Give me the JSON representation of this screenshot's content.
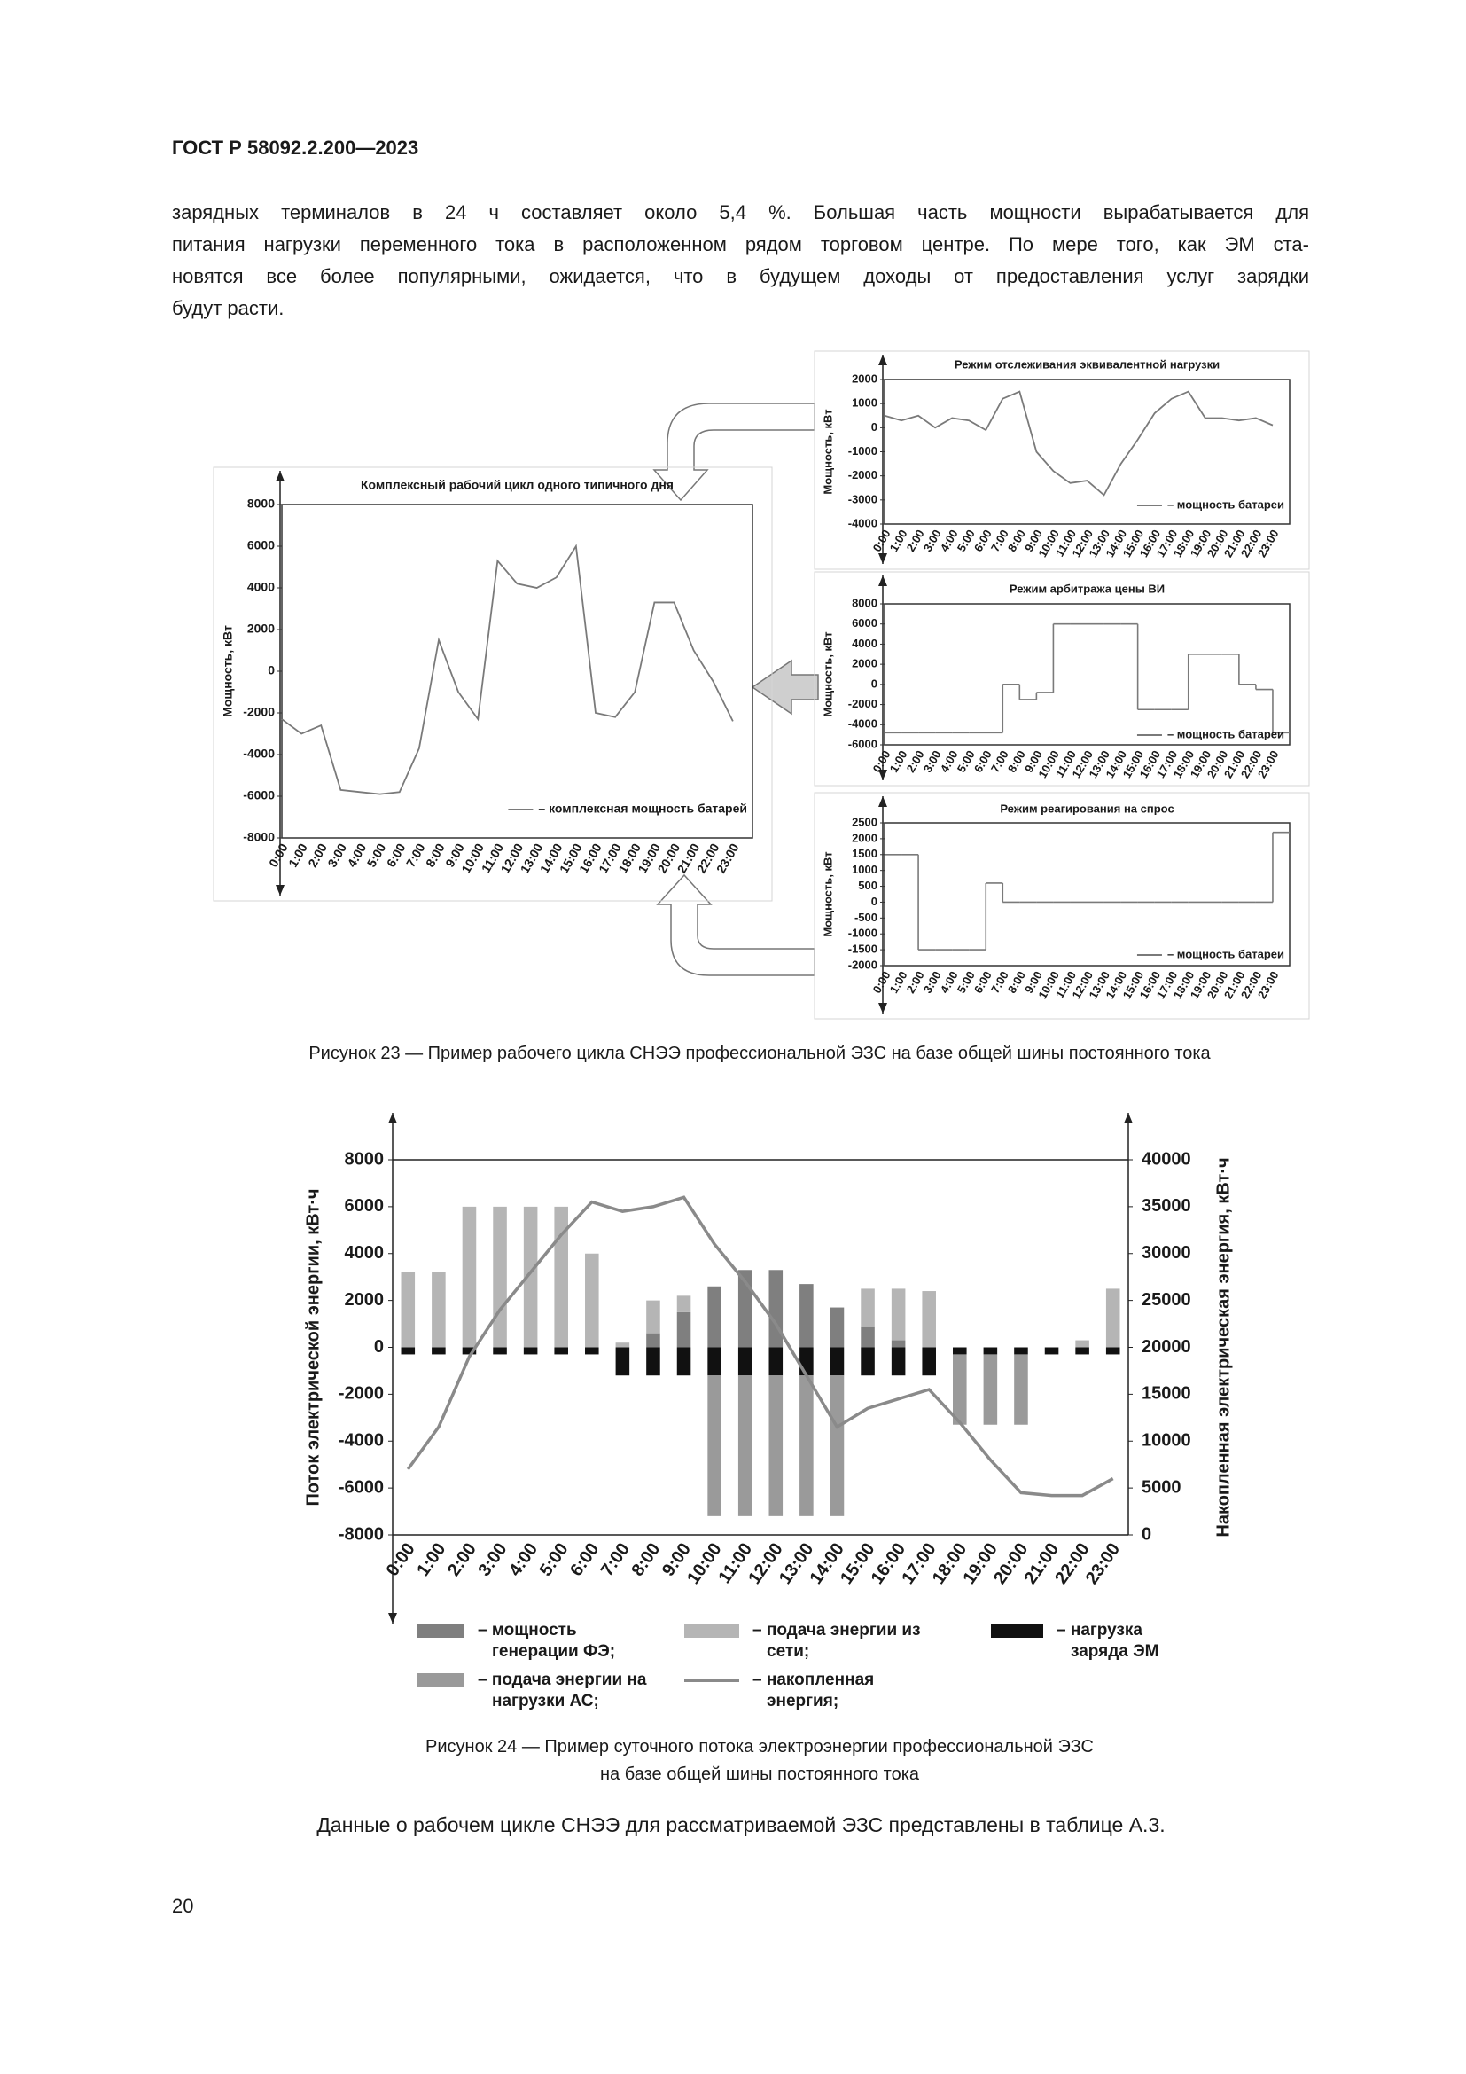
{
  "header": "ГОСТ Р 58092.2.200—2023",
  "paragraph": [
    "зарядных терминалов в 24 ч составляет около 5,4 %. Большая часть мощности вырабатывается для",
    "питания нагрузки переменного тока в расположенном рядом торговом центре. По мере того, как ЭМ ста-",
    "новятся все более популярными, ожидается, что в будущем доходы от предоставления услуг зарядки",
    "будут расти."
  ],
  "chart_data": [
    {
      "type": "line",
      "title": "Комплексный рабочий цикл одного типичного дня",
      "y_label": "Мощность, кВт",
      "categories": [
        "0:00",
        "1:00",
        "2:00",
        "3:00",
        "4:00",
        "5:00",
        "6:00",
        "7:00",
        "8:00",
        "9:00",
        "10:00",
        "11:00",
        "12:00",
        "13:00",
        "14:00",
        "15:00",
        "16:00",
        "17:00",
        "18:00",
        "19:00",
        "20:00",
        "21:00",
        "22:00",
        "23:00"
      ],
      "series": [
        {
          "name": "– комплексная мощность батарей",
          "color": "#7a7a7a",
          "values": [
            -2300,
            -3000,
            -2600,
            -5700,
            -5800,
            -5900,
            -5800,
            -3700,
            1500,
            -1000,
            -2300,
            5300,
            4200,
            4000,
            4500,
            6000,
            -2000,
            -2200,
            -1000,
            3300,
            3300,
            1000,
            -500,
            -2400
          ]
        }
      ],
      "ylim": [
        -8000,
        8000
      ],
      "yticks": [
        -8000,
        -6000,
        -4000,
        -2000,
        0,
        2000,
        4000,
        6000,
        8000
      ],
      "step": false
    },
    {
      "type": "line",
      "title": "Режим отслеживания эквивалентной нагрузки",
      "y_label": "Мощность, кВт",
      "categories": [
        "0:00",
        "1:00",
        "2:00",
        "3:00",
        "4:00",
        "5:00",
        "6:00",
        "7:00",
        "8:00",
        "9:00",
        "10:00",
        "11:00",
        "12:00",
        "13:00",
        "14:00",
        "15:00",
        "16:00",
        "17:00",
        "18:00",
        "19:00",
        "20:00",
        "21:00",
        "22:00",
        "23:00"
      ],
      "series": [
        {
          "name": "– мощность батареи",
          "color": "#7a7a7a",
          "values": [
            500,
            300,
            500,
            0,
            400,
            300,
            -100,
            1200,
            1500,
            -1000,
            -1800,
            -2300,
            -2200,
            -2800,
            -1500,
            -500,
            600,
            1200,
            1500,
            400,
            400,
            300,
            400,
            100
          ]
        }
      ],
      "ylim": [
        -4000,
        2000
      ],
      "yticks": [
        -4000,
        -3000,
        -2000,
        -1000,
        0,
        1000,
        2000
      ],
      "step": false
    },
    {
      "type": "line",
      "title": "Режим арбитража цены ВИ",
      "y_label": "Мощность, кВт",
      "categories": [
        "0:00",
        "1:00",
        "2:00",
        "3:00",
        "4:00",
        "5:00",
        "6:00",
        "7:00",
        "8:00",
        "9:00",
        "10:00",
        "11:00",
        "12:00",
        "13:00",
        "14:00",
        "15:00",
        "16:00",
        "17:00",
        "18:00",
        "19:00",
        "20:00",
        "21:00",
        "22:00",
        "23:00"
      ],
      "series": [
        {
          "name": "– мощность батареи",
          "color": "#7a7a7a",
          "values": [
            -4800,
            -4800,
            -4800,
            -4800,
            -4800,
            -4800,
            -4800,
            0,
            -1500,
            -800,
            6000,
            6000,
            6000,
            6000,
            6000,
            -2500,
            -2500,
            -2500,
            3000,
            3000,
            3000,
            0,
            -500,
            -4800
          ]
        }
      ],
      "ylim": [
        -6000,
        8000
      ],
      "yticks": [
        -6000,
        -4000,
        -2000,
        0,
        2000,
        4000,
        6000,
        8000
      ],
      "step": true
    },
    {
      "type": "line",
      "title": "Режим реагирования на спрос",
      "y_label": "Мощность, кВт",
      "categories": [
        "0:00",
        "1:00",
        "2:00",
        "3:00",
        "4:00",
        "5:00",
        "6:00",
        "7:00",
        "8:00",
        "9:00",
        "10:00",
        "11:00",
        "12:00",
        "13:00",
        "14:00",
        "15:00",
        "16:00",
        "17:00",
        "18:00",
        "19:00",
        "20:00",
        "21:00",
        "22:00",
        "23:00"
      ],
      "series": [
        {
          "name": "– мощность батареи",
          "color": "#7a7a7a",
          "values": [
            1500,
            1500,
            -1500,
            -1500,
            -1500,
            -1500,
            600,
            0,
            0,
            0,
            0,
            0,
            0,
            0,
            0,
            0,
            0,
            0,
            0,
            0,
            0,
            0,
            0,
            2200
          ]
        }
      ],
      "ylim": [
        -2000,
        2500
      ],
      "yticks": [
        -2000,
        -1500,
        -1000,
        -500,
        0,
        500,
        1000,
        1500,
        2000,
        2500
      ],
      "step": true
    },
    {
      "type": "combo",
      "y_label": "Поток электрической энергии, кВт·ч",
      "y2_label": "Накопленная электрическая энергия, кВт·ч",
      "categories": [
        "0:00",
        "1:00",
        "2:00",
        "3:00",
        "4:00",
        "5:00",
        "6:00",
        "7:00",
        "8:00",
        "9:00",
        "10:00",
        "11:00",
        "12:00",
        "13:00",
        "14:00",
        "15:00",
        "16:00",
        "17:00",
        "18:00",
        "19:00",
        "20:00",
        "21:00",
        "22:00",
        "23:00"
      ],
      "series": [
        {
          "name": "– мощность генерации ФЭ;",
          "type": "bar",
          "color": "#7f7f7f",
          "values": [
            0,
            0,
            0,
            0,
            0,
            0,
            0,
            0,
            600,
            1500,
            2600,
            3300,
            3300,
            2700,
            1700,
            900,
            300,
            0,
            0,
            0,
            0,
            0,
            0,
            0
          ]
        },
        {
          "name": "– подача энергии из сети;",
          "type": "bar",
          "color": "#b5b5b5",
          "values": [
            3200,
            3200,
            6000,
            6000,
            6000,
            6000,
            4000,
            200,
            1400,
            700,
            0,
            0,
            0,
            0,
            0,
            1600,
            2200,
            2400,
            0,
            0,
            0,
            0,
            300,
            2500
          ]
        },
        {
          "name": "– нагрузка заряда ЭМ",
          "type": "bar",
          "color": "#111111",
          "values": [
            -300,
            -300,
            -300,
            -300,
            -300,
            -300,
            -300,
            -1200,
            -1200,
            -1200,
            -1200,
            -1200,
            -1200,
            -1200,
            -1200,
            -1200,
            -1200,
            -1200,
            -300,
            -300,
            -300,
            -300,
            -300,
            -300
          ]
        },
        {
          "name": "– подача энергии на нагрузки АС;",
          "type": "bar",
          "color": "#9a9a9a",
          "values": [
            0,
            0,
            0,
            0,
            0,
            0,
            0,
            0,
            0,
            0,
            -6000,
            -6000,
            -6000,
            -6000,
            -6000,
            0,
            0,
            0,
            -3000,
            -3000,
            -3000,
            0,
            0,
            0
          ]
        },
        {
          "name": "– накопленная энергия;",
          "type": "line",
          "axis": "y2",
          "color": "#8a8a8a",
          "values": [
            7000,
            11500,
            19000,
            24000,
            28000,
            32000,
            35500,
            34500,
            35000,
            36000,
            31000,
            27000,
            22500,
            17000,
            11500,
            13500,
            14500,
            15500,
            12000,
            8000,
            4500,
            4200,
            4200,
            6000
          ]
        }
      ],
      "ylim": [
        -8000,
        8000
      ],
      "yticks": [
        -8000,
        -6000,
        -4000,
        -2000,
        0,
        2000,
        4000,
        6000,
        8000
      ],
      "y2lim": [
        0,
        40000
      ],
      "y2ticks": [
        0,
        5000,
        10000,
        15000,
        20000,
        25000,
        30000,
        35000,
        40000
      ]
    }
  ],
  "figure_23_caption": "Рисунок 23 — Пример рабочего цикла СНЭЭ профессиональной ЭЗС на базе общей шины постоянного тока",
  "figure_24_caption": [
    "Рисунок 24 — Пример суточного потока электроэнергии профессиональной ЭЗС",
    "на базе общей шины постоянного тока"
  ],
  "closing_paragraph": "Данные о рабочем цикле СНЭЭ для рассматриваемой ЭЗС представлены в таблице А.3.",
  "page_number": "20"
}
